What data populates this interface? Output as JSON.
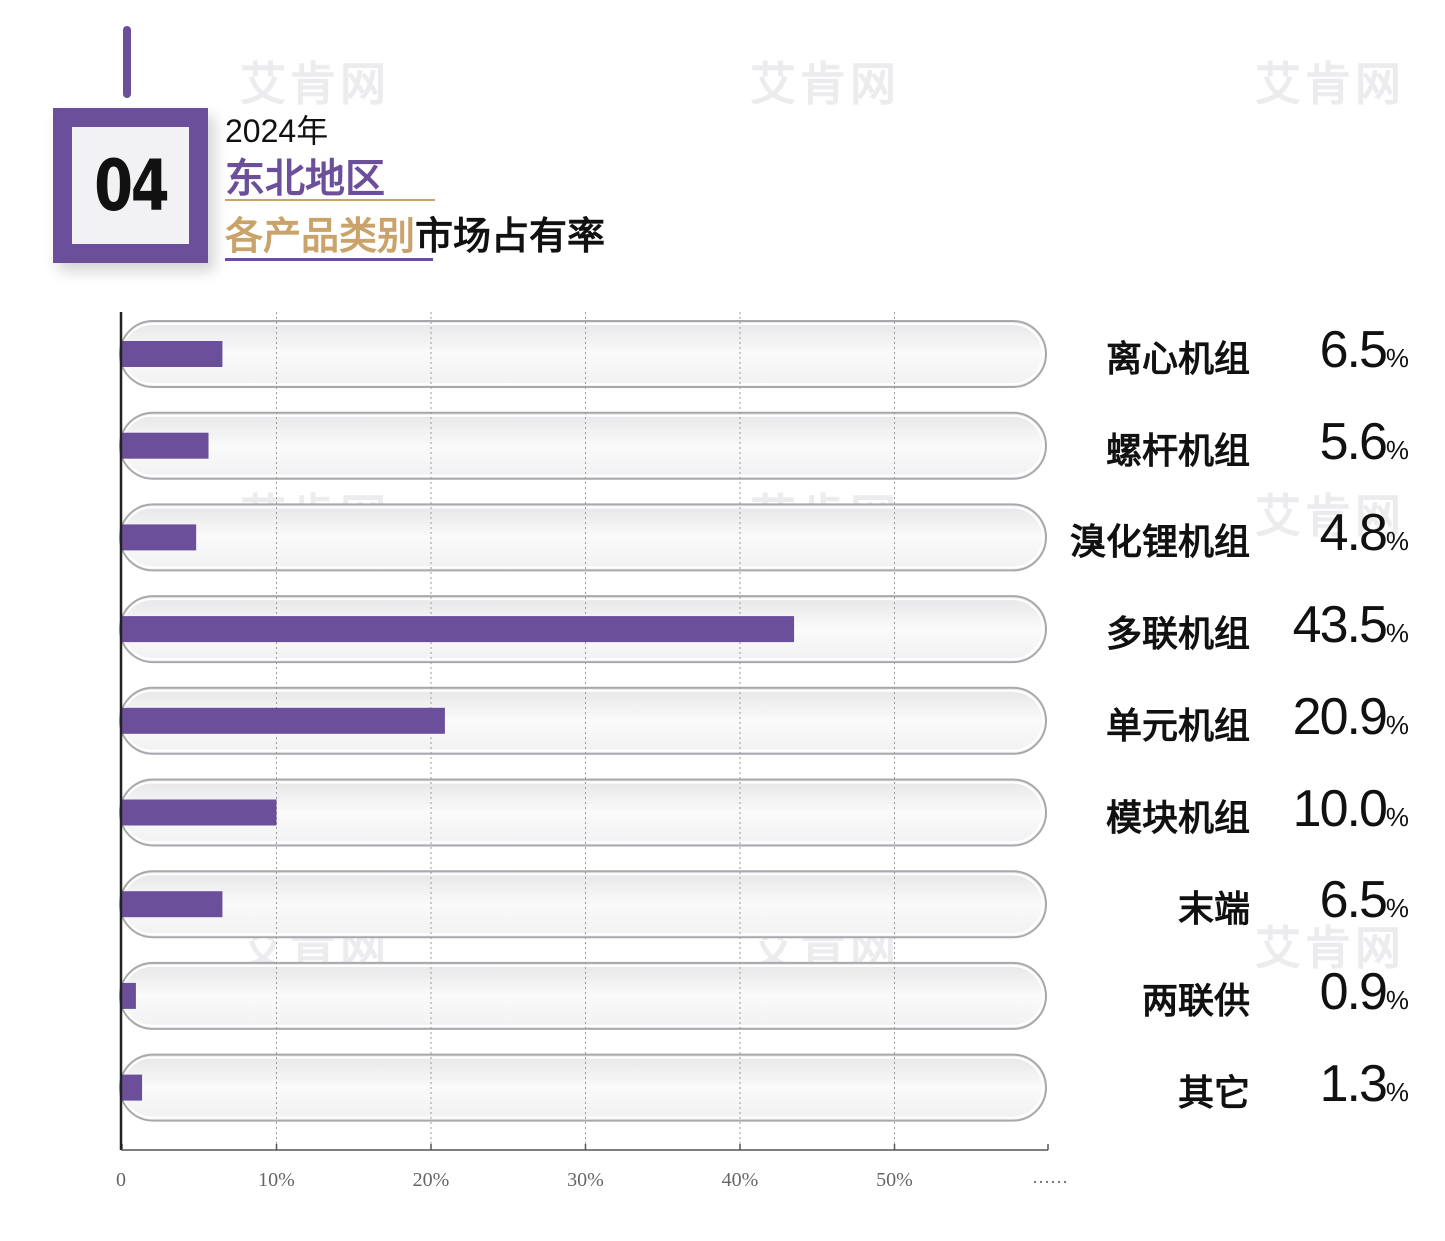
{
  "header": {
    "badge_number": "04",
    "year": "2024年",
    "region": "东北地区",
    "title_highlight": "各产品类别",
    "title_rest": "市场占有率"
  },
  "watermark_text": "艾肯网",
  "colors": {
    "accent": "#6c4f9b",
    "gold": "#c9a36a",
    "text": "#111111"
  },
  "chart_data": {
    "type": "bar",
    "orientation": "horizontal",
    "categories": [
      "离心机组",
      "螺杆机组",
      "溴化锂机组",
      "多联机组",
      "单元机组",
      "模块机组",
      "末端",
      "两联供",
      "其它"
    ],
    "values": [
      6.5,
      5.6,
      4.8,
      43.5,
      20.9,
      10.0,
      6.5,
      0.9,
      1.3
    ],
    "value_labels": [
      "6.5",
      "5.6",
      "4.8",
      "43.5",
      "20.9",
      "10.0",
      "6.5",
      "0.9",
      "1.3"
    ],
    "unit": "%",
    "x_ticks": [
      "0",
      "10%",
      "20%",
      "30%",
      "40%",
      "50%"
    ],
    "x_tick_values": [
      0,
      10,
      20,
      30,
      40,
      50
    ],
    "axis_continuation": "……",
    "xlim": [
      0,
      60
    ],
    "grid": true
  }
}
